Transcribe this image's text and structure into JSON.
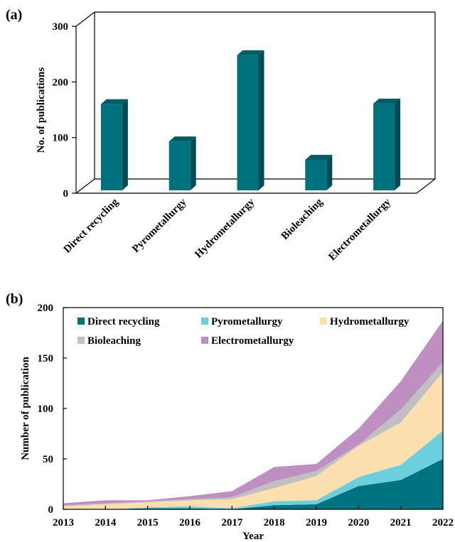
{
  "panels": {
    "a": "(a)",
    "b": "(b)"
  },
  "colors": {
    "bar_front": "#00727f",
    "bar_side": "#004c55",
    "bar_top": "#005c66",
    "direct_recycling": "#007380",
    "pyrometallurgy": "#6ccfdd",
    "hydrometallurgy": "#fbdfae",
    "bioleaching": "#c0c0c0",
    "electrometallurgy": "#c08fc2"
  },
  "chart_data": [
    {
      "type": "bar",
      "style": "3d",
      "categories": [
        "Direct recycling",
        "Pyrometallurgy",
        "Hydrometallurgy",
        "Bioleaching",
        "Electrometallurgy"
      ],
      "values": [
        160,
        93,
        248,
        60,
        161
      ],
      "title": "",
      "xlabel": "",
      "ylabel": "No. of publications",
      "ylim": [
        0,
        300
      ],
      "yticks": [
        "0",
        "100",
        "200",
        "300"
      ],
      "grid": false,
      "legend": "none"
    },
    {
      "type": "area",
      "stacked": true,
      "x": [
        "2013",
        "2014",
        "2015",
        "2016",
        "2017",
        "2018",
        "2019",
        "2020",
        "2021",
        "2022"
      ],
      "series": [
        {
          "name": "Direct recycling",
          "color_key": "direct_recycling",
          "values": [
            0,
            0,
            1,
            1,
            0,
            4,
            5,
            23,
            29,
            50
          ]
        },
        {
          "name": "Pyrometallurgy",
          "color_key": "pyrometallurgy",
          "values": [
            0,
            0,
            1,
            2,
            1,
            4,
            4,
            9,
            15,
            28
          ]
        },
        {
          "name": "Hydrometallurgy",
          "color_key": "hydrometallurgy",
          "values": [
            3,
            5,
            5,
            6,
            9,
            13,
            24,
            31,
            42,
            58
          ]
        },
        {
          "name": "Bioleaching",
          "color_key": "bioleaching",
          "values": [
            1,
            1,
            1,
            1,
            2,
            7,
            5,
            1,
            13,
            10
          ]
        },
        {
          "name": "Electrometallurgy",
          "color_key": "electrometallurgy",
          "values": [
            2,
            3,
            1,
            3,
            6,
            14,
            7,
            16,
            28,
            41
          ]
        }
      ],
      "title": "",
      "xlabel": "Year",
      "ylabel": "Number of publication",
      "ylim": [
        0,
        200
      ],
      "yticks": [
        "0",
        "50",
        "100",
        "150",
        "200"
      ],
      "grid": false,
      "legend": "top"
    }
  ]
}
